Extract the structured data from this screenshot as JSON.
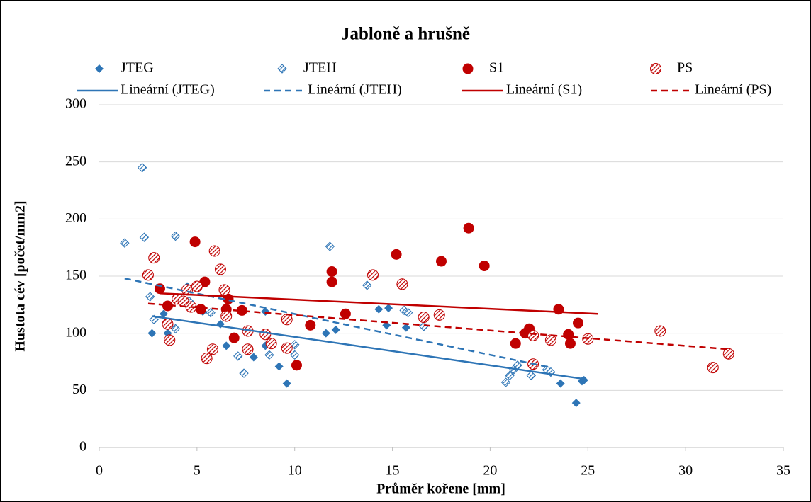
{
  "chart_data": {
    "type": "scatter",
    "title": "Jabloně a hrušně",
    "xlabel": "Průměr kořene [mm]",
    "ylabel": "Hustota cév [počet/mm2]",
    "xlim": [
      0,
      35
    ],
    "xticks": [
      0,
      5,
      10,
      15,
      20,
      25,
      30,
      35
    ],
    "ylim": [
      0,
      300
    ],
    "yticks": [
      0,
      50,
      100,
      150,
      200,
      250,
      300
    ],
    "grid": true,
    "legend": "top",
    "series": [
      {
        "name": "JTEG",
        "color": "#2e75b6",
        "marker": "diamond",
        "fill": "solid",
        "x": [
          2.7,
          3.3,
          3.5,
          4.5,
          5.3,
          6.2,
          6.5,
          7.9,
          8.5,
          8.5,
          9.2,
          9.6,
          11.6,
          12.1,
          14.3,
          14.8,
          14.7,
          15.7,
          23.6,
          24.4,
          24.7,
          24.8
        ],
        "values": [
          100,
          117,
          100,
          141,
          119,
          108,
          89,
          79,
          119,
          89,
          71,
          56,
          100,
          103,
          121,
          122,
          107,
          105,
          56,
          39,
          58,
          59
        ]
      },
      {
        "name": "JTEH",
        "color": "#2e75b6",
        "marker": "diamond",
        "fill": "hatched",
        "x": [
          1.3,
          2.2,
          2.3,
          2.6,
          2.8,
          3.9,
          3.9,
          4.6,
          5.7,
          7.1,
          7.4,
          8.7,
          10.0,
          10.0,
          11.8,
          13.7,
          15.6,
          15.8,
          16.6,
          20.8,
          21.0,
          21.2,
          21.4,
          22.1,
          22.9,
          23.1
        ],
        "values": [
          179,
          245,
          184,
          132,
          112,
          104,
          185,
          128,
          118,
          80,
          65,
          81,
          90,
          81,
          176,
          142,
          120,
          118,
          106,
          57,
          63,
          68,
          72,
          63,
          68,
          66
        ]
      },
      {
        "name": "S1",
        "color": "#c00000",
        "marker": "circle",
        "fill": "solid",
        "x": [
          4.9,
          3.1,
          3.5,
          5.2,
          5.4,
          6.5,
          6.6,
          6.9,
          7.3,
          10.1,
          10.8,
          11.9,
          11.9,
          12.6,
          15.2,
          17.5,
          18.9,
          19.7,
          21.3,
          21.8,
          22.0,
          23.5,
          24.0,
          24.1,
          24.5
        ],
        "values": [
          180,
          139,
          124,
          121,
          145,
          121,
          130,
          96,
          120,
          72,
          107,
          154,
          145,
          117,
          169,
          163,
          192,
          159,
          91,
          100,
          104,
          121,
          99,
          91,
          109
        ]
      },
      {
        "name": "PS",
        "color": "#c00000",
        "marker": "circle",
        "fill": "hatched",
        "x": [
          2.5,
          2.8,
          3.5,
          3.6,
          4.0,
          4.3,
          4.5,
          4.7,
          5.0,
          5.5,
          5.8,
          5.9,
          6.2,
          6.4,
          6.5,
          7.6,
          7.6,
          8.5,
          8.8,
          9.6,
          9.6,
          14.0,
          15.5,
          16.6,
          17.4,
          22.2,
          22.2,
          23.1,
          25.0,
          28.7,
          31.4,
          32.2
        ],
        "values": [
          151,
          166,
          108,
          94,
          130,
          128,
          138,
          123,
          141,
          78,
          86,
          172,
          156,
          138,
          115,
          86,
          102,
          99,
          91,
          112,
          87,
          151,
          143,
          114,
          116,
          73,
          98,
          94,
          95,
          102,
          70,
          82
        ]
      }
    ],
    "trendlines": [
      {
        "name": "Lineární (JTEG)",
        "color": "#2e75b6",
        "dash": false,
        "x": [
          2.7,
          24.8
        ],
        "y": [
          115,
          60
        ]
      },
      {
        "name": "Lineární (JTEH)",
        "color": "#2e75b6",
        "dash": true,
        "x": [
          1.3,
          23.1
        ],
        "y": [
          148,
          70
        ]
      },
      {
        "name": "Lineární (S1)",
        "color": "#c00000",
        "dash": false,
        "x": [
          3.1,
          25.5
        ],
        "y": [
          135,
          117
        ]
      },
      {
        "name": "Lineární (PS)",
        "color": "#c00000",
        "dash": true,
        "x": [
          2.5,
          32.2
        ],
        "y": [
          126,
          86
        ]
      }
    ]
  }
}
